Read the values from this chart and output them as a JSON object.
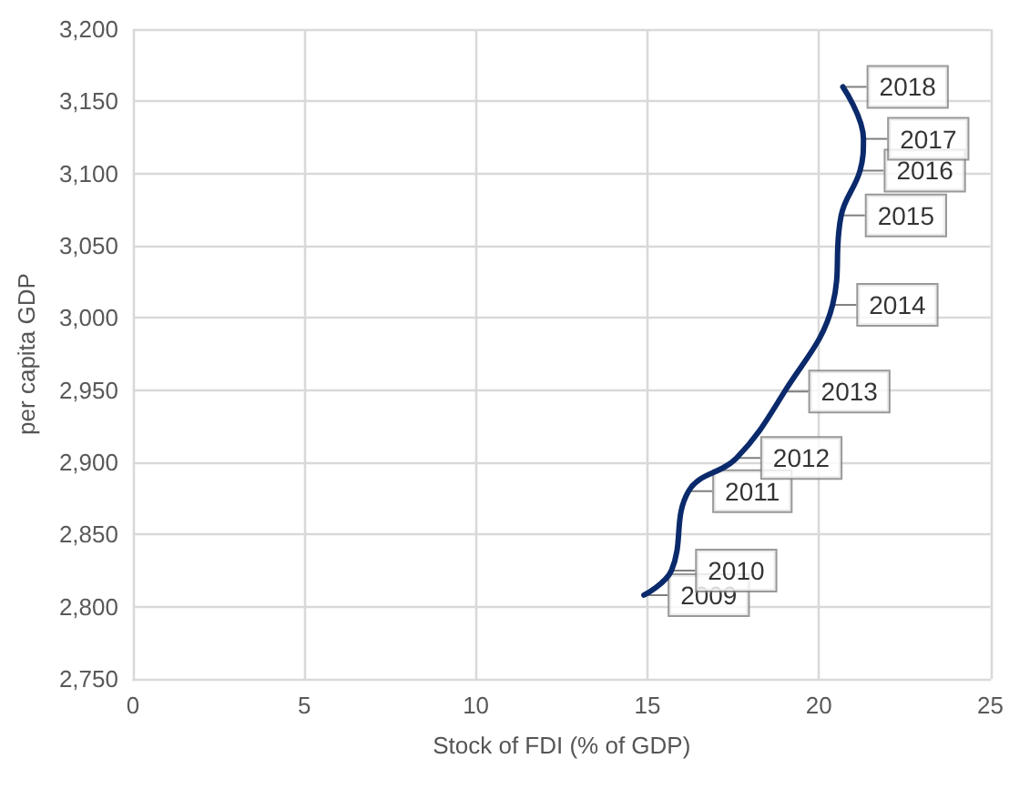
{
  "chart_data": {
    "type": "line",
    "xlabel": "Stock of FDI (% of GDP)",
    "ylabel": "per capita GDP",
    "series": [
      {
        "color": "#0b2a6b",
        "x": [
          14.9,
          15.7,
          16.2,
          17.6,
          19.0,
          20.4,
          20.65,
          21.2,
          21.3,
          20.7
        ],
        "values": [
          2808,
          2825,
          2880,
          2903,
          2949,
          3009,
          3071,
          3102,
          3124,
          3160
        ]
      }
    ],
    "annotations": [
      {
        "text": "2009",
        "x": 14.9,
        "y": 2808
      },
      {
        "text": "2010",
        "x": 15.7,
        "y": 2825
      },
      {
        "text": "2011",
        "x": 16.2,
        "y": 2880
      },
      {
        "text": "2012",
        "x": 17.6,
        "y": 2903
      },
      {
        "text": "2013",
        "x": 19.0,
        "y": 2949
      },
      {
        "text": "2014",
        "x": 20.4,
        "y": 3009
      },
      {
        "text": "2015",
        "x": 20.65,
        "y": 3071
      },
      {
        "text": "2016",
        "x": 21.2,
        "y": 3102
      },
      {
        "text": "2017",
        "x": 21.3,
        "y": 3124
      },
      {
        "text": "2018",
        "x": 20.7,
        "y": 3160
      }
    ],
    "xlim": [
      0,
      25
    ],
    "xticks": [
      0,
      5,
      10,
      15,
      20,
      25
    ],
    "ylim": [
      2750,
      3200
    ],
    "yticks": [
      {
        "value": 2750,
        "label": "2,750"
      },
      {
        "value": 2800,
        "label": "2,800"
      },
      {
        "value": 2850,
        "label": "2,850"
      },
      {
        "value": 2900,
        "label": "2,900"
      },
      {
        "value": 2950,
        "label": "2,950"
      },
      {
        "value": 3000,
        "label": "3,000"
      },
      {
        "value": 3050,
        "label": "3,050"
      },
      {
        "value": 3100,
        "label": "3,100"
      },
      {
        "value": 3150,
        "label": "3,150"
      },
      {
        "value": 3200,
        "label": "3,200"
      }
    ],
    "grid": true,
    "marker": "none",
    "line_style": "solid"
  }
}
